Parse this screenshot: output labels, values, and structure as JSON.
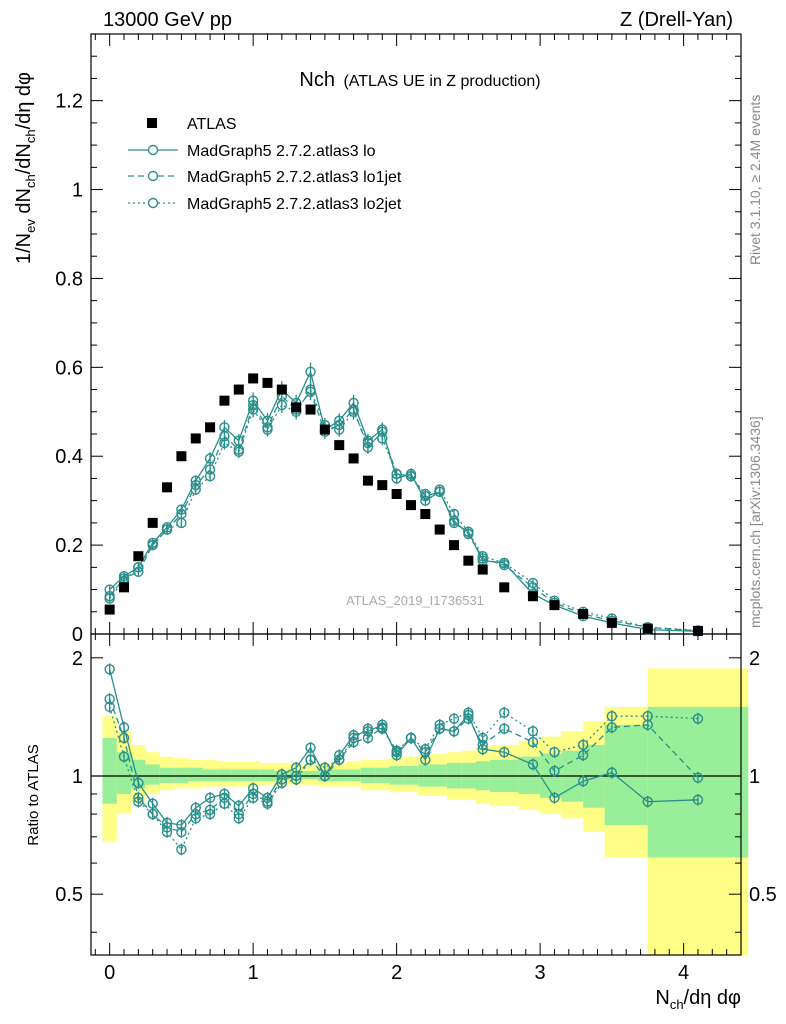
{
  "header": {
    "left": "13000 GeV pp",
    "right": "Z (Drell-Yan)"
  },
  "side_labels": {
    "rivet": "Rivet 3.1.10, ≥ 2.4M events",
    "mcplots": "mcplots.cern.ch [arXiv:1306.3436]"
  },
  "chart_data": {
    "type": "scatter",
    "title_main": "Nch",
    "title_sub": "(ATLAS UE in Z production)",
    "watermark": "ATLAS_2019_I1736531",
    "ylabel_top": "1/N_ev dN_ch/dN_ch/dη dφ",
    "ylabel_ratio": "Ratio to ATLAS",
    "xlabel": "N_ch/dη dφ",
    "xlim": [
      -0.13,
      4.4
    ],
    "ylim_top": [
      0,
      1.35
    ],
    "ylim_ratio": [
      0.35,
      2.3
    ],
    "xticks": [
      0,
      1,
      2,
      3,
      4
    ],
    "yticks_top": [
      0,
      0.2,
      0.4,
      0.6,
      0.8,
      1,
      1.2
    ],
    "yticks_ratio": [
      0.5,
      1,
      2
    ],
    "legend": [
      "ATLAS",
      "MadGraph5 2.7.2.atlas3 lo",
      "MadGraph5 2.7.2.atlas3 lo1jet",
      "MadGraph5 2.7.2.atlas3 lo2jet"
    ],
    "x": [
      0.0,
      0.1,
      0.2,
      0.3,
      0.4,
      0.5,
      0.6,
      0.7,
      0.8,
      0.9,
      1.0,
      1.1,
      1.2,
      1.3,
      1.4,
      1.5,
      1.6,
      1.7,
      1.8,
      1.9,
      2.0,
      2.1,
      2.2,
      2.3,
      2.4,
      2.5,
      2.6,
      2.75,
      2.95,
      3.1,
      3.3,
      3.5,
      3.75,
      4.1
    ],
    "x_err": [
      0.05,
      0.05,
      0.05,
      0.05,
      0.05,
      0.05,
      0.05,
      0.05,
      0.05,
      0.05,
      0.05,
      0.05,
      0.05,
      0.05,
      0.05,
      0.05,
      0.05,
      0.05,
      0.05,
      0.05,
      0.05,
      0.05,
      0.05,
      0.05,
      0.05,
      0.05,
      0.05,
      0.1,
      0.1,
      0.1,
      0.15,
      0.2,
      0.3,
      0.35
    ],
    "atlas": [
      0.055,
      0.105,
      0.175,
      0.25,
      0.33,
      0.4,
      0.44,
      0.465,
      0.525,
      0.55,
      0.575,
      0.565,
      0.55,
      0.51,
      0.505,
      0.46,
      0.425,
      0.395,
      0.345,
      0.335,
      0.315,
      0.29,
      0.27,
      0.235,
      0.2,
      0.165,
      0.145,
      0.105,
      0.085,
      0.065,
      0.045,
      0.025,
      0.012,
      0.007
    ],
    "series": [
      {
        "name": "MadGraph5 2.7.2.atlas3 lo",
        "dash": "",
        "values": [
          0.1,
          0.13,
          0.15,
          0.205,
          0.24,
          0.28,
          0.345,
          0.395,
          0.465,
          0.435,
          0.525,
          0.48,
          0.55,
          0.52,
          0.59,
          0.46,
          0.48,
          0.52,
          0.435,
          0.46,
          0.35,
          0.36,
          0.3,
          0.32,
          0.25,
          0.23,
          0.165,
          0.16,
          0.09,
          0.065,
          0.04,
          0.025,
          0.01,
          0.006
        ]
      },
      {
        "name": "MadGraph5 2.7.2.atlas3 lo1jet",
        "dash": "6,4",
        "values": [
          0.085,
          0.125,
          0.14,
          0.2,
          0.235,
          0.27,
          0.335,
          0.37,
          0.445,
          0.415,
          0.515,
          0.465,
          0.535,
          0.505,
          0.545,
          0.455,
          0.47,
          0.505,
          0.42,
          0.455,
          0.36,
          0.355,
          0.31,
          0.32,
          0.255,
          0.225,
          0.17,
          0.155,
          0.105,
          0.07,
          0.045,
          0.03,
          0.015,
          0.007
        ]
      },
      {
        "name": "MadGraph5 2.7.2.atlas3 lo2jet",
        "dash": "2,3",
        "values": [
          0.08,
          0.12,
          0.15,
          0.2,
          0.235,
          0.25,
          0.325,
          0.355,
          0.43,
          0.41,
          0.505,
          0.46,
          0.515,
          0.5,
          0.55,
          0.47,
          0.46,
          0.5,
          0.43,
          0.44,
          0.36,
          0.355,
          0.315,
          0.325,
          0.27,
          0.23,
          0.175,
          0.16,
          0.115,
          0.075,
          0.05,
          0.035,
          0.015,
          0.008
        ]
      }
    ],
    "ratio_series": [
      [
        1.87,
        1.33,
        0.96,
        0.85,
        0.76,
        0.75,
        0.83,
        0.88,
        0.9,
        0.84,
        0.93,
        0.88,
        1.01,
        1.05,
        1.18,
        1.0,
        1.13,
        1.27,
        1.3,
        1.35,
        1.13,
        1.25,
        1.1,
        1.32,
        1.3,
        1.43,
        1.17,
        1.15,
        1.07,
        0.88,
        0.97,
        1.02,
        0.86,
        0.87
      ],
      [
        1.57,
        1.25,
        0.88,
        0.8,
        0.74,
        0.72,
        0.8,
        0.82,
        0.88,
        0.8,
        0.9,
        0.86,
        0.98,
        1.0,
        1.1,
        1.0,
        1.1,
        1.22,
        1.25,
        1.33,
        1.15,
        1.25,
        1.15,
        1.32,
        1.3,
        1.4,
        1.2,
        1.32,
        1.22,
        1.03,
        1.13,
        1.33,
        1.35,
        0.99
      ],
      [
        1.5,
        1.12,
        0.86,
        0.8,
        0.72,
        0.65,
        0.78,
        0.8,
        0.85,
        0.78,
        0.88,
        0.85,
        0.96,
        0.98,
        1.1,
        1.05,
        1.1,
        1.25,
        1.32,
        1.32,
        1.16,
        1.25,
        1.17,
        1.35,
        1.4,
        1.45,
        1.25,
        1.45,
        1.3,
        1.15,
        1.2,
        1.42,
        1.42,
        1.4
      ]
    ],
    "band_green": [
      [
        0.85,
        1.25
      ],
      [
        0.9,
        1.15
      ],
      [
        0.93,
        1.1
      ],
      [
        0.95,
        1.07
      ],
      [
        0.96,
        1.05
      ],
      [
        0.96,
        1.05
      ],
      [
        0.97,
        1.05
      ],
      [
        0.97,
        1.04
      ],
      [
        0.97,
        1.04
      ],
      [
        0.97,
        1.04
      ],
      [
        0.97,
        1.04
      ],
      [
        0.97,
        1.04
      ],
      [
        0.98,
        1.03
      ],
      [
        0.98,
        1.03
      ],
      [
        0.98,
        1.03
      ],
      [
        0.97,
        1.04
      ],
      [
        0.97,
        1.04
      ],
      [
        0.97,
        1.04
      ],
      [
        0.96,
        1.05
      ],
      [
        0.96,
        1.05
      ],
      [
        0.95,
        1.06
      ],
      [
        0.95,
        1.06
      ],
      [
        0.94,
        1.07
      ],
      [
        0.94,
        1.07
      ],
      [
        0.93,
        1.08
      ],
      [
        0.93,
        1.08
      ],
      [
        0.92,
        1.09
      ],
      [
        0.91,
        1.1
      ],
      [
        0.9,
        1.12
      ],
      [
        0.88,
        1.14
      ],
      [
        0.86,
        1.16
      ],
      [
        0.83,
        1.2
      ],
      [
        0.75,
        1.35
      ],
      [
        0.62,
        1.5
      ]
    ],
    "band_yellow": [
      [
        0.68,
        1.42
      ],
      [
        0.8,
        1.3
      ],
      [
        0.86,
        1.2
      ],
      [
        0.9,
        1.15
      ],
      [
        0.92,
        1.12
      ],
      [
        0.93,
        1.11
      ],
      [
        0.93,
        1.1
      ],
      [
        0.94,
        1.1
      ],
      [
        0.94,
        1.09
      ],
      [
        0.94,
        1.09
      ],
      [
        0.94,
        1.09
      ],
      [
        0.95,
        1.08
      ],
      [
        0.95,
        1.08
      ],
      [
        0.95,
        1.07
      ],
      [
        0.95,
        1.07
      ],
      [
        0.94,
        1.08
      ],
      [
        0.94,
        1.08
      ],
      [
        0.94,
        1.09
      ],
      [
        0.92,
        1.1
      ],
      [
        0.92,
        1.1
      ],
      [
        0.91,
        1.11
      ],
      [
        0.91,
        1.12
      ],
      [
        0.89,
        1.13
      ],
      [
        0.89,
        1.14
      ],
      [
        0.87,
        1.15
      ],
      [
        0.87,
        1.16
      ],
      [
        0.85,
        1.18
      ],
      [
        0.84,
        1.2
      ],
      [
        0.82,
        1.23
      ],
      [
        0.8,
        1.26
      ],
      [
        0.78,
        1.3
      ],
      [
        0.72,
        1.38
      ],
      [
        0.62,
        1.5
      ],
      [
        0.35,
        1.88
      ]
    ],
    "colors": {
      "mc": "#2a8f8b",
      "data": "#000000",
      "green": "#99ee99",
      "yellow": "#ffff88"
    }
  }
}
